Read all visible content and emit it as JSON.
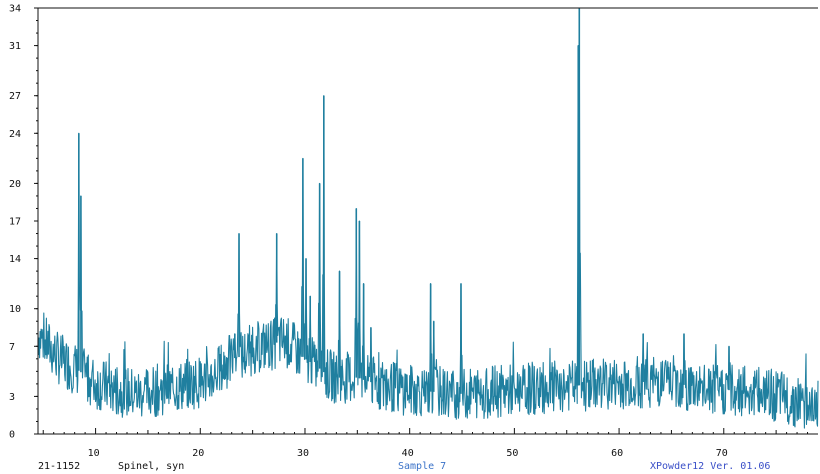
{
  "chart_data": {
    "type": "line",
    "title": "",
    "xlabel": "",
    "ylabel": "",
    "xlim": [
      4.5,
      79
    ],
    "ylim": [
      0,
      34
    ],
    "x_ticks": [
      10,
      20,
      30,
      40,
      50,
      60,
      70
    ],
    "y_ticks": [
      0,
      3,
      7,
      10,
      14,
      17,
      20,
      24,
      27,
      31,
      34
    ],
    "grid": false,
    "series": [
      {
        "color": "#1f7f9f",
        "baseline": [
          [
            4.5,
            8
          ],
          [
            5.5,
            7
          ],
          [
            6.5,
            6
          ],
          [
            7.5,
            5.5
          ],
          [
            8.5,
            5
          ],
          [
            10,
            4
          ],
          [
            11,
            3.8
          ],
          [
            12,
            3.5
          ],
          [
            14,
            3.2
          ],
          [
            16,
            3.5
          ],
          [
            18,
            3.8
          ],
          [
            20,
            4.2
          ],
          [
            21,
            4.5
          ],
          [
            22,
            5.2
          ],
          [
            23,
            6
          ],
          [
            24,
            6.2
          ],
          [
            25,
            6.8
          ],
          [
            26,
            7
          ],
          [
            27,
            7.2
          ],
          [
            28,
            7.5
          ],
          [
            29,
            6.8
          ],
          [
            30,
            6
          ],
          [
            31,
            5.5
          ],
          [
            32,
            4.8
          ],
          [
            33,
            4.5
          ],
          [
            34,
            4.5
          ],
          [
            35,
            4.5
          ],
          [
            36,
            4.2
          ],
          [
            38,
            3.8
          ],
          [
            40,
            3.5
          ],
          [
            45,
            3.2
          ],
          [
            50,
            3.5
          ],
          [
            55,
            3.8
          ],
          [
            58,
            4
          ],
          [
            60,
            4
          ],
          [
            63,
            4.2
          ],
          [
            65,
            4.2
          ],
          [
            68,
            3.5
          ],
          [
            72,
            3.5
          ],
          [
            75,
            3
          ],
          [
            79,
            2.2
          ]
        ],
        "peaks": [
          [
            8.4,
            24
          ],
          [
            8.6,
            19
          ],
          [
            23.7,
            16
          ],
          [
            23.3,
            8
          ],
          [
            27.3,
            16
          ],
          [
            29.8,
            22
          ],
          [
            30.1,
            14
          ],
          [
            30.5,
            11
          ],
          [
            31.4,
            20
          ],
          [
            31.8,
            27
          ],
          [
            33.3,
            13
          ],
          [
            34.9,
            18
          ],
          [
            35.2,
            17
          ],
          [
            35.6,
            12
          ],
          [
            36.3,
            8.5
          ],
          [
            42.0,
            12
          ],
          [
            42.3,
            9
          ],
          [
            44.9,
            12
          ],
          [
            56.2,
            34
          ],
          [
            56.1,
            31
          ],
          [
            62.3,
            8
          ],
          [
            66.2,
            8
          ],
          [
            70.5,
            7
          ]
        ]
      }
    ]
  },
  "footer": {
    "card_number": "21-1152",
    "phase_name": "Spinel, syn",
    "sample_name": "Sample 7",
    "software": "XPowder12 Ver. 01.06"
  },
  "colors": {
    "trace": "#1f7f9f",
    "sample_text": "#3a72c8",
    "software_text": "#3a4fc8",
    "axis": "#111111"
  }
}
